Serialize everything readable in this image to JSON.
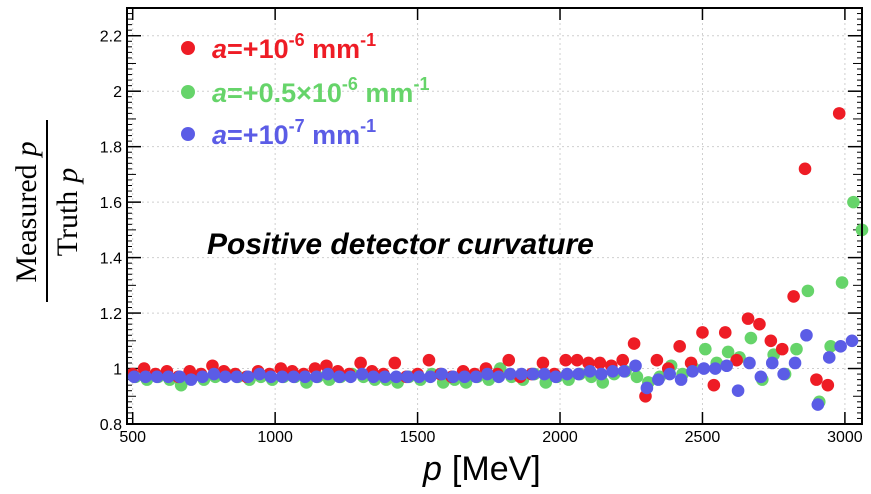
{
  "chart_data": {
    "type": "scatter",
    "title": "",
    "annotation": "Positive detector curvature",
    "xlabel": {
      "var": "p",
      "unit": "[MeV]"
    },
    "ylabel": {
      "numerator": "Measured",
      "denominator": "Truth",
      "var": "p"
    },
    "xlim": [
      480,
      3060
    ],
    "ylim": [
      0.8,
      2.3
    ],
    "xticks": [
      500,
      1000,
      1500,
      2000,
      2500,
      3000
    ],
    "xtick_labels": [
      "500",
      "1000",
      "1500",
      "2000",
      "2500",
      "3000"
    ],
    "yticks": [
      0.8,
      1,
      1.2,
      1.4,
      1.6,
      1.8,
      2,
      2.2
    ],
    "ytick_labels": [
      "0.8",
      "1",
      "1.2",
      "1.4",
      "1.6",
      "1.8",
      "2",
      "2.2"
    ],
    "legend_position": "top-left",
    "series": [
      {
        "name": "a=+10^-6 mm^-1",
        "legend": {
          "a": "a",
          "eq": "=+10",
          "exp": "-6",
          "unit": " mm",
          "unit_exp": "-1"
        },
        "color": "#ee1c25",
        "x": [
          500,
          540,
          580,
          620,
          660,
          700,
          740,
          780,
          820,
          860,
          900,
          940,
          980,
          1020,
          1060,
          1100,
          1140,
          1180,
          1220,
          1260,
          1300,
          1340,
          1380,
          1420,
          1460,
          1500,
          1540,
          1580,
          1620,
          1660,
          1700,
          1740,
          1780,
          1820,
          1860,
          1900,
          1940,
          1980,
          2020,
          2060,
          2100,
          2140,
          2180,
          2220,
          2260,
          2300,
          2340,
          2380,
          2420,
          2460,
          2500,
          2540,
          2580,
          2620,
          2660,
          2700,
          2740,
          2780,
          2820,
          2860,
          2900,
          2940,
          2980
        ],
        "values": [
          0.98,
          1.0,
          0.98,
          0.99,
          0.97,
          0.99,
          0.98,
          1.01,
          0.99,
          0.98,
          0.97,
          0.99,
          0.98,
          1.0,
          0.99,
          0.98,
          1.0,
          1.01,
          0.99,
          0.98,
          1.02,
          0.99,
          0.98,
          1.02,
          0.97,
          0.98,
          1.03,
          0.98,
          0.97,
          0.99,
          0.98,
          1.0,
          0.98,
          1.03,
          0.97,
          0.98,
          1.02,
          0.98,
          1.03,
          1.03,
          1.02,
          1.02,
          1.01,
          1.03,
          1.09,
          0.9,
          1.03,
          1.0,
          1.08,
          1.02,
          1.13,
          0.94,
          1.13,
          1.03,
          1.18,
          1.16,
          1.1,
          1.07,
          1.26,
          1.72,
          0.96,
          0.94,
          1.92
        ]
      },
      {
        "name": "a=+0.5×10^-6 mm^-1",
        "legend": {
          "a": "a",
          "eq": "=+0.5×10",
          "exp": "-6",
          "unit": "  mm",
          "unit_exp": "-1"
        },
        "color": "#66d46a",
        "x": [
          510,
          550,
          590,
          630,
          670,
          710,
          750,
          790,
          830,
          870,
          910,
          950,
          990,
          1030,
          1070,
          1110,
          1150,
          1190,
          1230,
          1270,
          1310,
          1350,
          1390,
          1430,
          1470,
          1510,
          1550,
          1590,
          1630,
          1670,
          1710,
          1750,
          1790,
          1830,
          1870,
          1910,
          1950,
          1990,
          2030,
          2070,
          2110,
          2150,
          2190,
          2230,
          2270,
          2310,
          2350,
          2390,
          2430,
          2470,
          2510,
          2550,
          2590,
          2630,
          2670,
          2710,
          2750,
          2790,
          2830,
          2870,
          2910,
          2950,
          2990,
          3030,
          3060
        ],
        "values": [
          0.97,
          0.96,
          0.97,
          0.96,
          0.94,
          0.97,
          0.96,
          0.97,
          0.98,
          0.97,
          0.96,
          0.97,
          0.96,
          0.97,
          0.97,
          0.95,
          0.97,
          0.96,
          0.97,
          0.98,
          0.97,
          0.96,
          0.96,
          0.95,
          0.97,
          0.96,
          0.98,
          0.95,
          0.96,
          0.95,
          0.97,
          0.96,
          1.0,
          0.97,
          0.96,
          0.98,
          0.95,
          0.97,
          0.96,
          0.98,
          0.97,
          0.95,
          0.98,
          0.99,
          0.97,
          0.95,
          0.97,
          1.01,
          0.98,
          1.0,
          1.07,
          1.02,
          1.06,
          1.04,
          1.11,
          0.96,
          1.05,
          0.98,
          1.07,
          1.28,
          0.88,
          1.08,
          1.31,
          1.6,
          1.5
        ]
      },
      {
        "name": "a=+10^-7 mm^-1",
        "legend": {
          "a": "a",
          "eq": "=+10",
          "exp": "-7",
          "unit": " mm",
          "unit_exp": "-1"
        },
        "color": "#5b5ce6",
        "x": [
          505,
          545,
          585,
          625,
          665,
          705,
          745,
          785,
          825,
          865,
          905,
          945,
          985,
          1025,
          1065,
          1105,
          1145,
          1185,
          1225,
          1265,
          1305,
          1345,
          1385,
          1425,
          1465,
          1505,
          1545,
          1585,
          1625,
          1665,
          1705,
          1745,
          1785,
          1825,
          1865,
          1905,
          1945,
          1985,
          2025,
          2065,
          2105,
          2145,
          2185,
          2225,
          2265,
          2305,
          2345,
          2385,
          2425,
          2465,
          2505,
          2545,
          2585,
          2625,
          2665,
          2705,
          2745,
          2785,
          2825,
          2865,
          2905,
          2945,
          2985,
          3025
        ],
        "values": [
          0.97,
          0.97,
          0.97,
          0.97,
          0.97,
          0.96,
          0.97,
          0.98,
          0.97,
          0.97,
          0.97,
          0.98,
          0.97,
          0.97,
          0.97,
          0.97,
          0.97,
          0.98,
          0.97,
          0.97,
          0.98,
          0.97,
          0.97,
          0.97,
          0.97,
          0.97,
          0.97,
          0.98,
          0.97,
          0.97,
          0.97,
          0.98,
          0.97,
          0.98,
          0.98,
          0.98,
          0.98,
          0.97,
          0.98,
          0.98,
          0.99,
          0.98,
          0.99,
          0.99,
          1.01,
          0.93,
          0.96,
          0.98,
          0.96,
          0.99,
          1.0,
          1.0,
          1.01,
          0.92,
          1.02,
          0.97,
          1.02,
          0.98,
          1.02,
          1.12,
          0.87,
          1.04,
          1.08,
          1.1
        ]
      }
    ]
  }
}
